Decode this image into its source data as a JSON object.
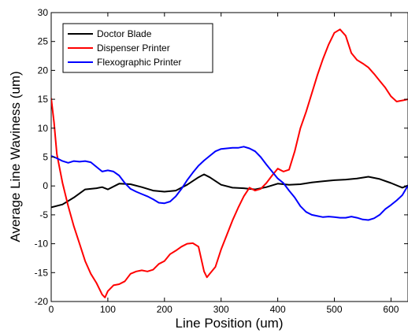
{
  "chart_data": {
    "type": "line",
    "title": "",
    "xlabel": "Line Position (um)",
    "ylabel": "Average Line Waviness (um)",
    "xlim": [
      0,
      630
    ],
    "ylim": [
      -20,
      30
    ],
    "xticks": [
      0,
      100,
      200,
      300,
      400,
      500,
      600
    ],
    "yticks": [
      -20,
      -15,
      -10,
      -5,
      0,
      5,
      10,
      15,
      20,
      25,
      30
    ],
    "grid": false,
    "legend": "top-left",
    "series": [
      {
        "name": "Doctor Blade",
        "color": "#000000",
        "x": [
          0,
          20,
          40,
          60,
          80,
          90,
          100,
          120,
          140,
          160,
          180,
          200,
          220,
          240,
          260,
          270,
          280,
          300,
          320,
          340,
          360,
          380,
          400,
          420,
          440,
          460,
          480,
          500,
          520,
          540,
          560,
          580,
          600,
          620,
          630
        ],
        "y": [
          -3.7,
          -3.2,
          -2.0,
          -0.6,
          -0.4,
          -0.2,
          -0.6,
          0.4,
          0.3,
          -0.2,
          -0.8,
          -1.0,
          -0.8,
          0.2,
          1.5,
          2.0,
          1.5,
          0.2,
          -0.3,
          -0.4,
          -0.6,
          -0.2,
          0.4,
          0.2,
          0.3,
          0.6,
          0.8,
          1.0,
          1.1,
          1.3,
          1.6,
          1.2,
          0.5,
          -0.3,
          0.1
        ]
      },
      {
        "name": "Dispenser Printer",
        "color": "#ff0000",
        "x": [
          0,
          5,
          10,
          20,
          30,
          40,
          50,
          60,
          70,
          80,
          90,
          95,
          100,
          110,
          120,
          130,
          140,
          150,
          160,
          170,
          180,
          190,
          200,
          210,
          220,
          230,
          240,
          250,
          260,
          270,
          275,
          280,
          290,
          300,
          310,
          320,
          330,
          340,
          350,
          360,
          370,
          380,
          390,
          400,
          410,
          420,
          430,
          440,
          450,
          460,
          470,
          480,
          490,
          500,
          510,
          520,
          530,
          540,
          550,
          560,
          570,
          580,
          590,
          600,
          610,
          620,
          630
        ],
        "y": [
          15.2,
          11.0,
          5.5,
          0.5,
          -3.5,
          -7.0,
          -10.0,
          -13.0,
          -15.2,
          -16.8,
          -18.8,
          -19.3,
          -18.2,
          -17.2,
          -17.0,
          -16.5,
          -15.2,
          -14.8,
          -14.6,
          -14.8,
          -14.5,
          -13.5,
          -13.0,
          -11.8,
          -11.2,
          -10.5,
          -10.0,
          -9.9,
          -10.5,
          -14.8,
          -15.8,
          -15.2,
          -14.0,
          -11.0,
          -8.5,
          -6.0,
          -3.8,
          -1.8,
          -0.3,
          -0.8,
          -0.5,
          0.5,
          1.8,
          3.0,
          2.5,
          2.8,
          6.0,
          10.0,
          12.8,
          16.0,
          19.2,
          22.0,
          24.5,
          26.5,
          27.1,
          26.0,
          23.0,
          21.8,
          21.2,
          20.5,
          19.4,
          18.2,
          17.0,
          15.5,
          14.6,
          14.8,
          15.0
        ]
      },
      {
        "name": "Flexographic Printer",
        "color": "#0000ff",
        "x": [
          0,
          10,
          20,
          30,
          40,
          50,
          60,
          70,
          80,
          90,
          100,
          110,
          120,
          130,
          140,
          150,
          160,
          170,
          180,
          190,
          200,
          210,
          220,
          230,
          240,
          250,
          260,
          270,
          280,
          290,
          300,
          310,
          320,
          330,
          340,
          350,
          360,
          370,
          380,
          390,
          400,
          410,
          420,
          430,
          440,
          450,
          460,
          470,
          480,
          490,
          500,
          510,
          520,
          530,
          540,
          550,
          560,
          570,
          580,
          590,
          600,
          610,
          620,
          630
        ],
        "y": [
          5.2,
          4.8,
          4.3,
          4.0,
          4.3,
          4.2,
          4.3,
          4.1,
          3.3,
          2.5,
          2.7,
          2.5,
          1.8,
          0.5,
          -0.5,
          -1.0,
          -1.4,
          -1.8,
          -2.3,
          -2.9,
          -3.0,
          -2.7,
          -1.8,
          -0.5,
          1.0,
          2.3,
          3.5,
          4.4,
          5.2,
          6.0,
          6.4,
          6.5,
          6.6,
          6.6,
          6.8,
          6.5,
          6.0,
          5.0,
          3.7,
          2.5,
          1.3,
          0.5,
          -0.8,
          -2.0,
          -3.5,
          -4.5,
          -5.0,
          -5.2,
          -5.4,
          -5.3,
          -5.4,
          -5.5,
          -5.5,
          -5.3,
          -5.5,
          -5.8,
          -5.9,
          -5.6,
          -5.0,
          -4.0,
          -3.3,
          -2.5,
          -1.6,
          0.1
        ]
      }
    ]
  }
}
